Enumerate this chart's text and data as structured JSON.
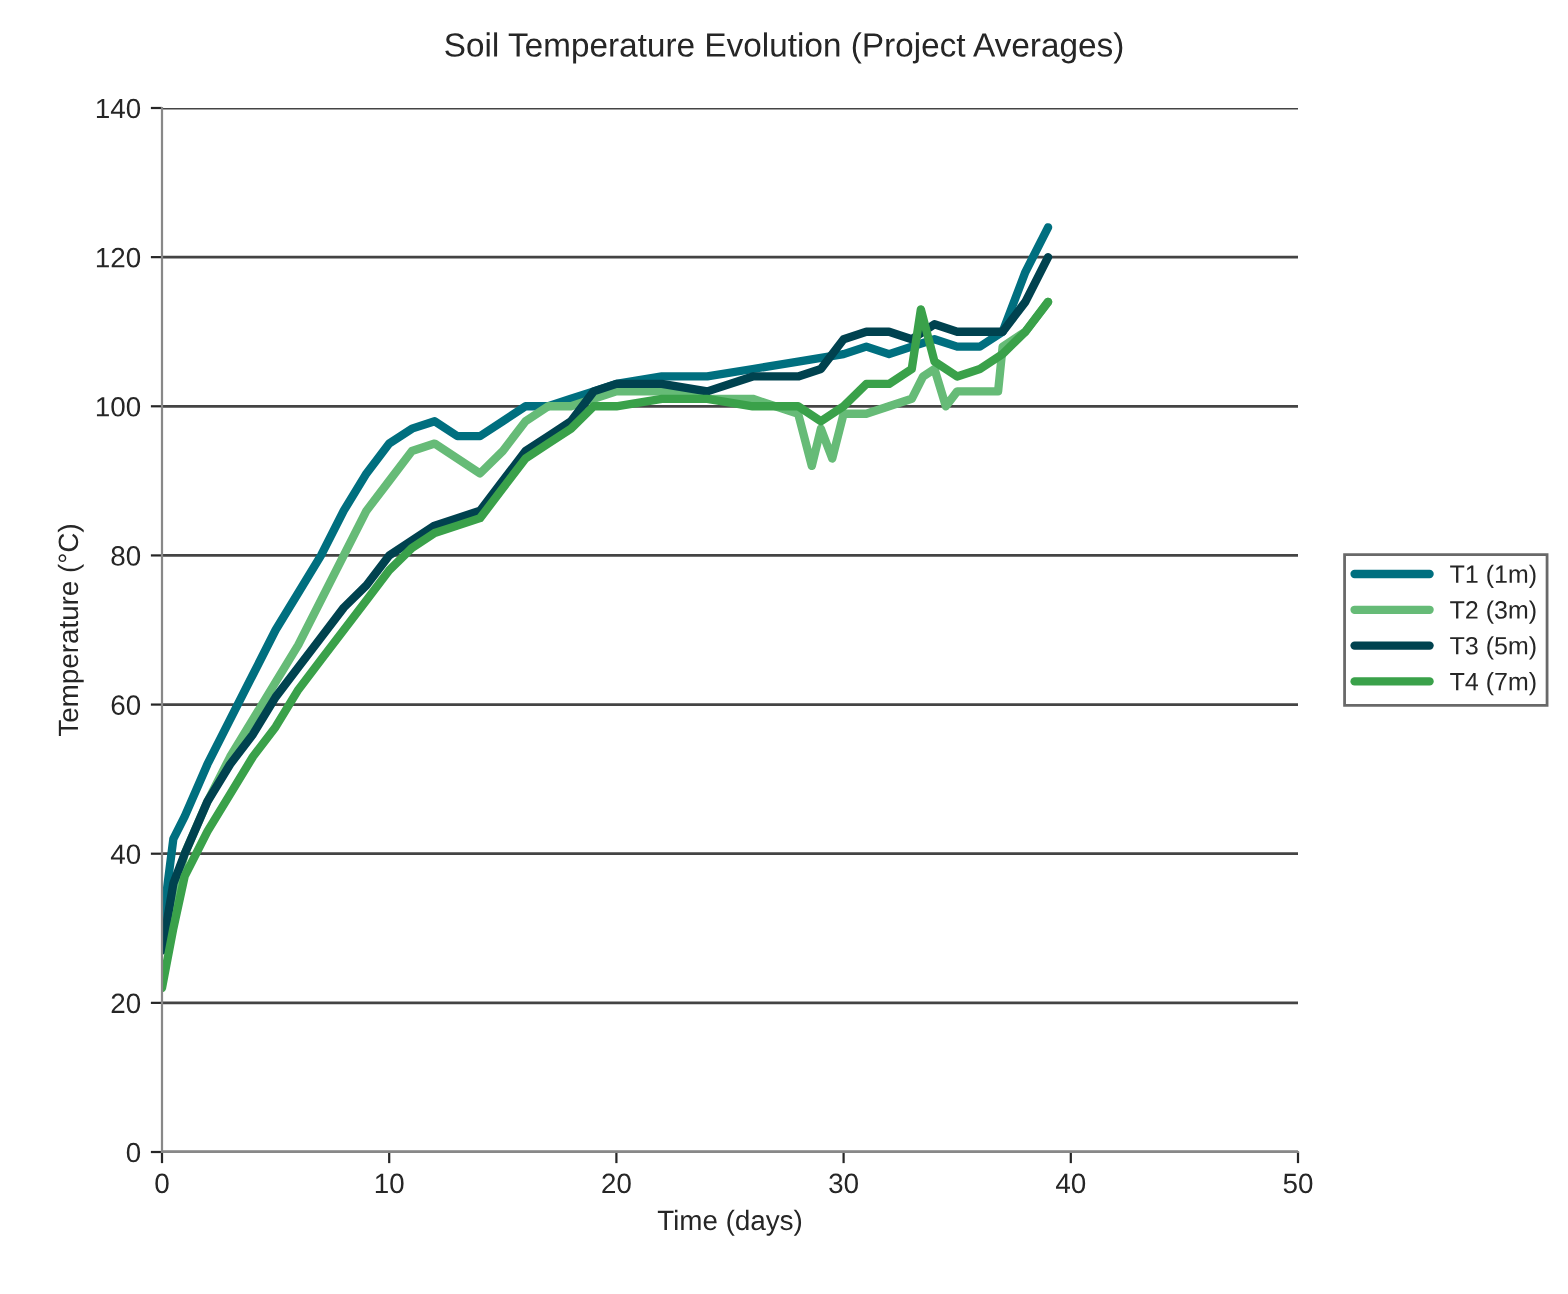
{
  "chart_data": {
    "type": "line",
    "title": "Soil Temperature Evolution (Project Averages)",
    "xlabel": "Time (days)",
    "ylabel": "Temperature (°C)",
    "xlim": [
      0,
      50
    ],
    "ylim": [
      0,
      140
    ],
    "xticks": [
      0,
      10,
      20,
      30,
      40,
      50
    ],
    "yticks": [
      0,
      20,
      40,
      60,
      80,
      100,
      120,
      140
    ],
    "grid": "y",
    "legend": "right",
    "marker": "none",
    "line_style": "solid",
    "series": [
      {
        "name": "T1 (1m)",
        "color": "#006f7f",
        "x": [
          0,
          0.5,
          1,
          2,
          3,
          4,
          5,
          6,
          7,
          8,
          9,
          10,
          11,
          12,
          13,
          14,
          15,
          16,
          17,
          18,
          19,
          20,
          22,
          24,
          26,
          28,
          30,
          31,
          32,
          33,
          34,
          35,
          36,
          37,
          38,
          39
        ],
        "values": [
          30,
          42,
          45,
          52,
          58,
          64,
          70,
          75,
          80,
          86,
          91,
          95,
          97,
          98,
          96,
          96,
          98,
          100,
          100,
          101,
          102,
          103,
          104,
          104,
          105,
          106,
          107,
          108,
          107,
          108,
          109,
          108,
          108,
          110,
          118,
          124
        ]
      },
      {
        "name": "T2 (3m)",
        "color": "#66bb77",
        "x": [
          0,
          1,
          2,
          3,
          4,
          5,
          6,
          7,
          8,
          9,
          10,
          11,
          12,
          13,
          14,
          15,
          16,
          17,
          18,
          19,
          20,
          22,
          24,
          26,
          28,
          28.6,
          29,
          29.5,
          30,
          31,
          32,
          33,
          33.5,
          34,
          34.5,
          35,
          36,
          36.8,
          37,
          38,
          39
        ],
        "values": [
          28,
          40,
          47,
          53,
          58,
          63,
          68,
          74,
          80,
          86,
          90,
          94,
          95,
          93,
          91,
          94,
          98,
          100,
          100,
          101,
          102,
          102,
          101,
          101,
          99,
          92,
          97,
          93,
          99,
          99,
          100,
          101,
          104,
          105,
          100,
          102,
          102,
          102,
          108,
          110,
          114
        ]
      },
      {
        "name": "T3 (5m)",
        "color": "#00424f",
        "x": [
          0,
          0.5,
          1,
          2,
          3,
          4,
          5,
          6,
          7,
          8,
          9,
          10,
          11,
          12,
          13,
          14,
          15,
          16,
          17,
          18,
          19,
          20,
          22,
          24,
          26,
          28,
          29,
          30,
          31,
          32,
          33,
          34,
          35,
          36,
          37,
          38,
          39
        ],
        "values": [
          27,
          36,
          40,
          47,
          52,
          56,
          61,
          65,
          69,
          73,
          76,
          80,
          82,
          84,
          85,
          86,
          90,
          94,
          96,
          98,
          102,
          103,
          103,
          102,
          104,
          104,
          105,
          109,
          110,
          110,
          109,
          111,
          110,
          110,
          110,
          114,
          120
        ]
      },
      {
        "name": "T4 (7m)",
        "color": "#3aa14a",
        "x": [
          0,
          0.5,
          1,
          2,
          3,
          4,
          5,
          6,
          7,
          8,
          9,
          10,
          11,
          12,
          13,
          14,
          15,
          16,
          17,
          18,
          19,
          20,
          22,
          24,
          26,
          28,
          29,
          30,
          31,
          32,
          33,
          33.4,
          34,
          35,
          36,
          37,
          38,
          39
        ],
        "values": [
          22,
          30,
          37,
          43,
          48,
          53,
          57,
          62,
          66,
          70,
          74,
          78,
          81,
          83,
          84,
          85,
          89,
          93,
          95,
          97,
          100,
          100,
          101,
          101,
          100,
          100,
          98,
          100,
          103,
          103,
          105,
          113,
          106,
          104,
          105,
          107,
          110,
          114
        ]
      }
    ]
  }
}
